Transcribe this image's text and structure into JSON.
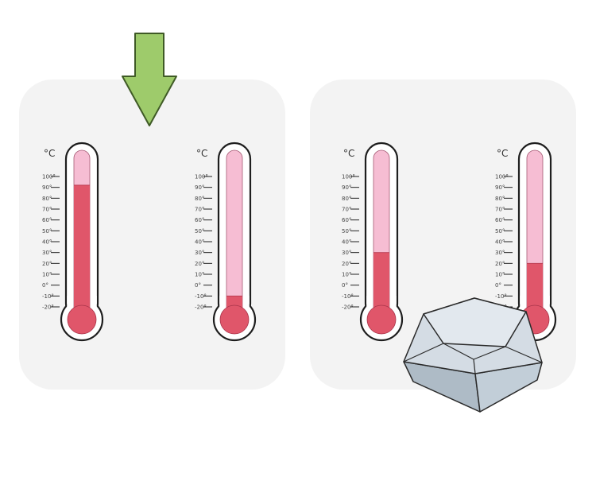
{
  "scale": {
    "unit": "°C",
    "ticks": [
      "100°",
      "90°",
      "80°",
      "70°",
      "60°",
      "50°",
      "40°",
      "30°",
      "20°",
      "10°",
      "0°",
      "-10°",
      "-20°"
    ],
    "min": -20,
    "max": 100
  },
  "colors": {
    "panel": "#f3f3f3",
    "tube_empty": "#f6bdd3",
    "liquid": "#e0566a",
    "outline": "#1e1e1e",
    "arrow_fill": "#9ecb6b",
    "arrow_stroke": "#3f5a26",
    "key_top": "#d4dce4",
    "key_side": "#bcc8d2"
  },
  "thermometers": [
    {
      "id": "left-panel-thermometer-1",
      "level": 92
    },
    {
      "id": "left-panel-thermometer-2",
      "level": -10
    },
    {
      "id": "right-panel-thermometer-1",
      "level": 30
    },
    {
      "id": "right-panel-thermometer-2",
      "level": 20
    }
  ],
  "icons": {
    "pointer": "down-arrow-icon",
    "key": "keyboard-key-icon"
  }
}
